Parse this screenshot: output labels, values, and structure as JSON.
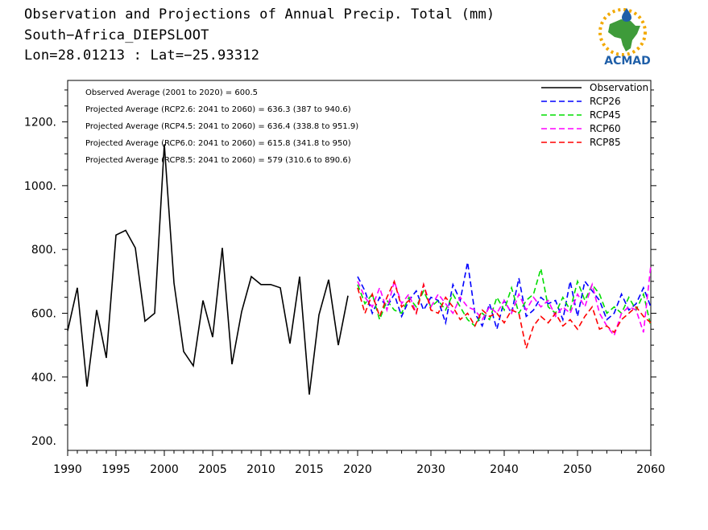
{
  "header": {
    "title_line1": "Observation and Projections of Annual Precip. Total (mm)",
    "title_line2": "South−Africa_DIEPSLOOT",
    "title_line3": "Lon=28.01213 : Lat=−25.93312",
    "logo_text": "ACMAD"
  },
  "colors": {
    "observation": "#000000",
    "rcp26": "#0000ff",
    "rcp45": "#00dd00",
    "rcp60": "#ff00ff",
    "rcp85": "#ff0000",
    "logo_accent": "#1f5fa8",
    "logo_gold": "#f2a900",
    "logo_green": "#3e9b3a"
  },
  "chart_data": {
    "type": "line",
    "xlabel": "",
    "ylabel": "",
    "xlim": [
      1990,
      2060
    ],
    "ylim": [
      170,
      1330
    ],
    "x_ticks": [
      1990,
      1995,
      2000,
      2005,
      2010,
      2015,
      2020,
      2030,
      2040,
      2050,
      2060
    ],
    "y_ticks": [
      200,
      400,
      600,
      800,
      1000,
      1200
    ],
    "y_tick_labels": [
      "200.",
      "400.",
      "600.",
      "800.",
      "1000.",
      "1200."
    ],
    "legend_position": "top-right",
    "annotations": [
      "Observed Average (2001 to 2020) = 600.5",
      "Projected Average (RCP2.6: 2041 to 2060) = 636.3 (387 to 940.6)",
      "Projected Average (RCP4.5: 2041 to 2060) = 636.4 (338.8 to 951.9)",
      "Projected Average (RCP6.0: 2041 to 2060) = 615.8 (341.8 to 950)",
      "Projected Average (RCP8.5: 2041 to 2060) = 579 (310.6 to 890.6)"
    ],
    "series": [
      {
        "name": "Observation",
        "style": "solid",
        "color_key": "observation",
        "x": [
          1990,
          1991,
          1992,
          1993,
          1994,
          1995,
          1996,
          1997,
          1998,
          1999,
          2000,
          2001,
          2002,
          2003,
          2004,
          2005,
          2006,
          2007,
          2008,
          2009,
          2010,
          2011,
          2012,
          2013,
          2014,
          2015,
          2016,
          2017,
          2018,
          2019
        ],
        "y": [
          545,
          680,
          370,
          610,
          460,
          845,
          860,
          805,
          575,
          600,
          1130,
          695,
          480,
          435,
          640,
          525,
          805,
          440,
          605,
          715,
          690,
          690,
          680,
          505,
          715,
          345,
          595,
          705,
          500,
          655
        ]
      },
      {
        "name": "RCP26",
        "style": "dashed",
        "color_key": "rcp26",
        "x": [
          2020,
          2021,
          2022,
          2023,
          2024,
          2025,
          2026,
          2027,
          2028,
          2029,
          2030,
          2031,
          2032,
          2033,
          2034,
          2035,
          2036,
          2037,
          2038,
          2039,
          2040,
          2041,
          2042,
          2043,
          2044,
          2045,
          2046,
          2047,
          2048,
          2049,
          2050,
          2051,
          2052,
          2053,
          2054,
          2055,
          2056,
          2057,
          2058,
          2059,
          2060
        ],
        "y": [
          715,
          670,
          600,
          650,
          620,
          660,
          590,
          640,
          670,
          610,
          650,
          640,
          570,
          690,
          640,
          760,
          600,
          560,
          630,
          550,
          640,
          600,
          710,
          590,
          610,
          650,
          630,
          640,
          580,
          700,
          590,
          700,
          670,
          640,
          580,
          600,
          660,
          610,
          630,
          680,
          620
        ]
      },
      {
        "name": "RCP45",
        "style": "dashed",
        "color_key": "rcp45",
        "x": [
          2020,
          2021,
          2022,
          2023,
          2024,
          2025,
          2026,
          2027,
          2028,
          2029,
          2030,
          2031,
          2032,
          2033,
          2034,
          2035,
          2036,
          2037,
          2038,
          2039,
          2040,
          2041,
          2042,
          2043,
          2044,
          2045,
          2046,
          2047,
          2048,
          2049,
          2050,
          2051,
          2052,
          2053,
          2054,
          2055,
          2056,
          2057,
          2058,
          2059,
          2060
        ],
        "y": [
          690,
          630,
          660,
          580,
          640,
          610,
          600,
          650,
          620,
          670,
          620,
          640,
          610,
          660,
          620,
          580,
          560,
          600,
          580,
          650,
          610,
          680,
          600,
          640,
          660,
          740,
          620,
          600,
          650,
          610,
          700,
          640,
          690,
          660,
          600,
          620,
          600,
          650,
          610,
          660,
          560
        ]
      },
      {
        "name": "RCP60",
        "style": "dashed",
        "color_key": "rcp60",
        "x": [
          2020,
          2021,
          2022,
          2023,
          2024,
          2025,
          2026,
          2027,
          2028,
          2029,
          2030,
          2031,
          2032,
          2033,
          2034,
          2035,
          2036,
          2037,
          2038,
          2039,
          2040,
          2041,
          2042,
          2043,
          2044,
          2045,
          2046,
          2047,
          2048,
          2049,
          2050,
          2051,
          2052,
          2053,
          2054,
          2055,
          2056,
          2057,
          2058,
          2059,
          2060
        ],
        "y": [
          700,
          650,
          620,
          680,
          610,
          700,
          630,
          660,
          600,
          690,
          620,
          660,
          630,
          600,
          650,
          620,
          610,
          580,
          620,
          600,
          640,
          600,
          660,
          610,
          650,
          620,
          640,
          590,
          620,
          600,
          660,
          620,
          690,
          600,
          560,
          530,
          600,
          620,
          610,
          540,
          750
        ]
      },
      {
        "name": "RCP85",
        "style": "dashed",
        "color_key": "rcp85",
        "x": [
          2020,
          2021,
          2022,
          2023,
          2024,
          2025,
          2026,
          2027,
          2028,
          2029,
          2030,
          2031,
          2032,
          2033,
          2034,
          2035,
          2036,
          2037,
          2038,
          2039,
          2040,
          2041,
          2042,
          2043,
          2044,
          2045,
          2046,
          2047,
          2048,
          2049,
          2050,
          2051,
          2052,
          2053,
          2054,
          2055,
          2056,
          2057,
          2058,
          2059,
          2060
        ],
        "y": [
          680,
          600,
          660,
          590,
          650,
          700,
          620,
          640,
          600,
          690,
          610,
          600,
          650,
          620,
          580,
          600,
          560,
          610,
          590,
          600,
          570,
          610,
          600,
          490,
          560,
          590,
          570,
          600,
          560,
          580,
          550,
          590,
          620,
          550,
          560,
          540,
          580,
          600,
          620,
          590,
          570
        ]
      }
    ]
  }
}
